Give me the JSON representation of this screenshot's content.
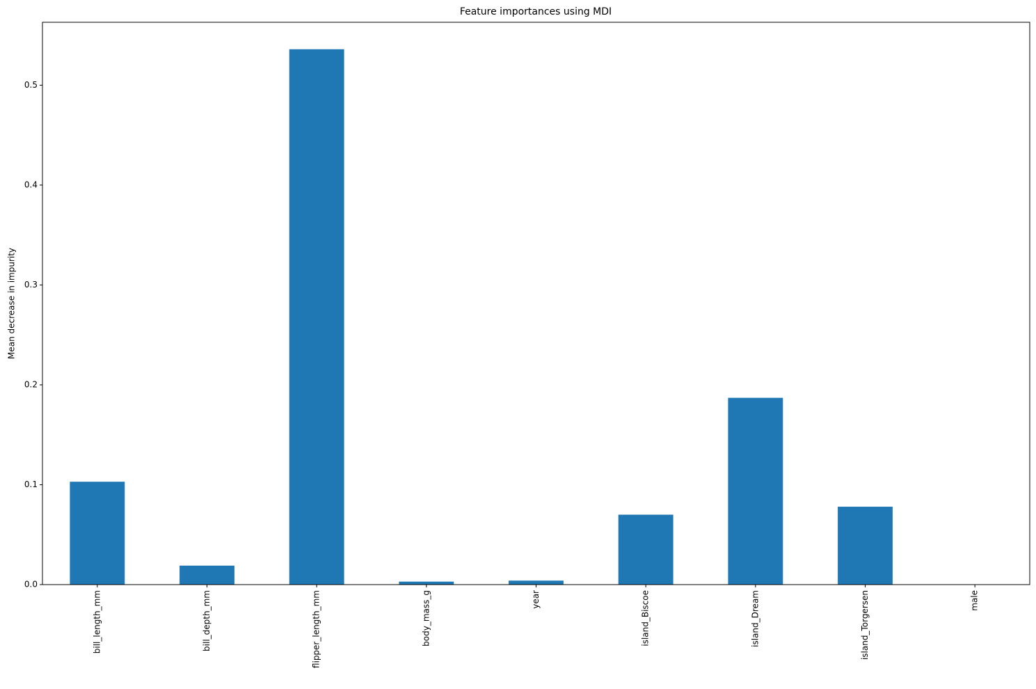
{
  "chart_data": {
    "type": "bar",
    "title": "Feature importances using MDI",
    "y_label": "Mean decrease in impurity",
    "categories": [
      "bill_length_mm",
      "bill_depth_mm",
      "flipper_length_mm",
      "body_mass_g",
      "year",
      "island_Biscoe",
      "island_Dream",
      "island_Torgersen",
      "male"
    ],
    "values": [
      0.103,
      0.019,
      0.536,
      0.003,
      0.004,
      0.07,
      0.187,
      0.078,
      0
    ],
    "color": "#1f77b4",
    "ylim": [
      0,
      0.563
    ],
    "yticks": [
      {
        "value": 0,
        "label": "0.0"
      },
      0.1,
      0.2,
      0.3,
      0.4,
      0.5
    ]
  }
}
